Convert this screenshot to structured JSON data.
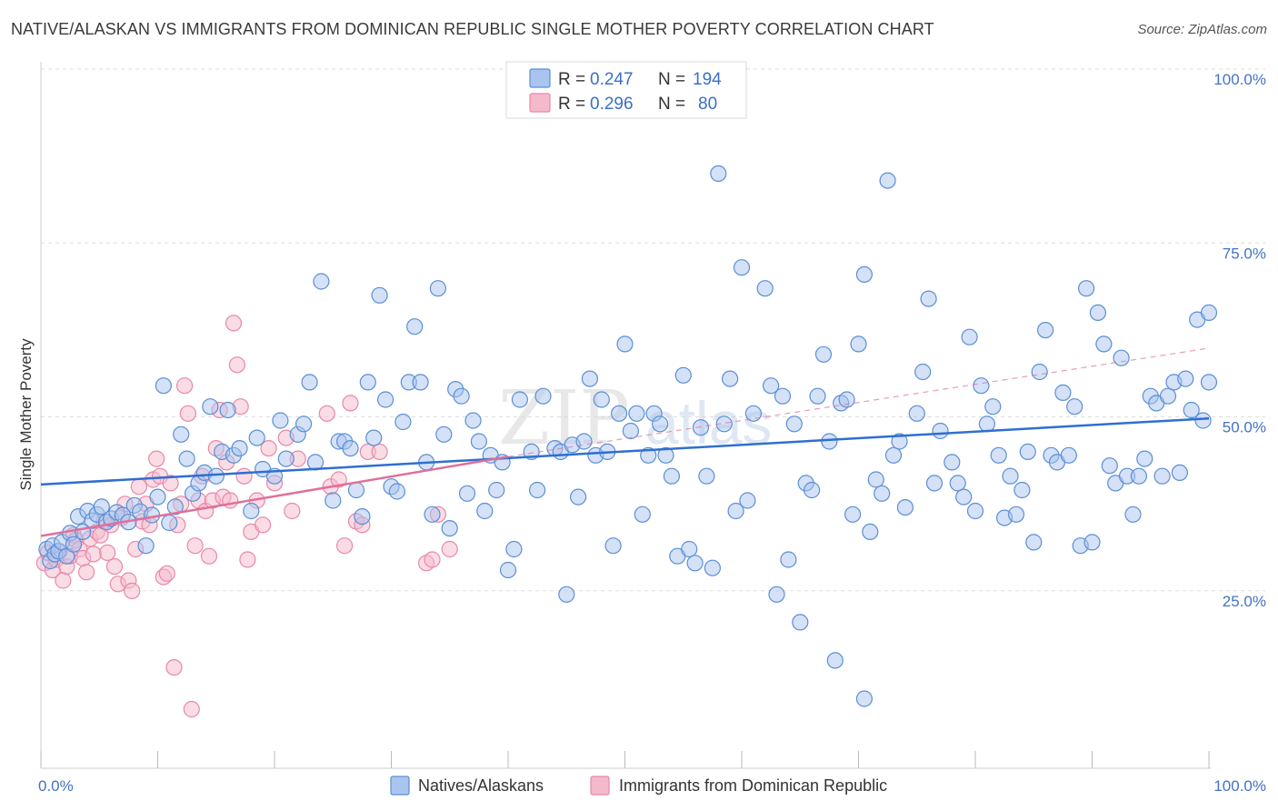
{
  "header": {
    "title": "NATIVE/ALASKAN VS IMMIGRANTS FROM DOMINICAN REPUBLIC SINGLE MOTHER POVERTY CORRELATION CHART",
    "source": "Source: ZipAtlas.com"
  },
  "watermark": {
    "part1": "ZIP",
    "part2": "atlas"
  },
  "legend": {
    "r_label": "R =",
    "n_label": "N =",
    "rows": [
      {
        "r": "0.247",
        "n": "194"
      },
      {
        "r": "0.296",
        "n": "80"
      }
    ]
  },
  "colors": {
    "blue_fill": "#a9c4ee",
    "blue_stroke": "#5b8fd6",
    "blue_line": "#2f6fd0",
    "pink_fill": "#f5b9cc",
    "pink_stroke": "#e888a8",
    "pink_line": "#e0709a",
    "grid": "#dddddd",
    "tick_label": "#4472c4"
  },
  "chart_data": {
    "type": "scatter",
    "title": "NATIVE/ALASKAN VS IMMIGRANTS FROM DOMINICAN REPUBLIC SINGLE MOTHER POVERTY CORRELATION CHART",
    "xlabel": "",
    "ylabel": "Single Mother Poverty",
    "xlim": [
      0,
      100
    ],
    "ylim": [
      0,
      100
    ],
    "x_tick_labels": [
      "0.0%",
      "100.0%"
    ],
    "y_tick_labels": [
      "100.0%",
      "75.0%",
      "50.0%",
      "25.0%"
    ],
    "y_ticks": [
      100,
      75,
      50,
      25
    ],
    "grid": true,
    "legend_position": "top-center",
    "series": [
      {
        "name": "Natives/Alaskans",
        "r": 0.247,
        "n": 194,
        "trend": {
          "x": [
            0,
            100
          ],
          "y": [
            40.8,
            50.3
          ],
          "style": "solid"
        },
        "points": [
          [
            0.5,
            31.5
          ],
          [
            0.8,
            29.8
          ],
          [
            1.0,
            32.0
          ],
          [
            1.2,
            30.8
          ],
          [
            1.5,
            31.2
          ],
          [
            1.8,
            32.5
          ],
          [
            2.2,
            30.5
          ],
          [
            2.5,
            33.8
          ],
          [
            2.8,
            32.2
          ],
          [
            3.2,
            36.2
          ],
          [
            3.6,
            34.0
          ],
          [
            4.0,
            37.0
          ],
          [
            4.4,
            35.6
          ],
          [
            4.8,
            36.5
          ],
          [
            5.2,
            37.6
          ],
          [
            5.6,
            35.4
          ],
          [
            6.0,
            35.9
          ],
          [
            6.5,
            36.8
          ],
          [
            7.0,
            36.4
          ],
          [
            7.5,
            35.4
          ],
          [
            8.0,
            37.8
          ],
          [
            8.5,
            36.9
          ],
          [
            9.0,
            32.0
          ],
          [
            9.5,
            36.4
          ],
          [
            10.0,
            39.0
          ],
          [
            10.5,
            55.0
          ],
          [
            11.0,
            35.3
          ],
          [
            11.5,
            37.6
          ],
          [
            12.0,
            48.0
          ],
          [
            12.5,
            44.5
          ],
          [
            13.0,
            39.5
          ],
          [
            13.5,
            41.0
          ],
          [
            14.0,
            42.5
          ],
          [
            14.5,
            52.0
          ],
          [
            15.0,
            42.0
          ],
          [
            15.5,
            45.5
          ],
          [
            16.0,
            51.5
          ],
          [
            16.5,
            45.0
          ],
          [
            17.0,
            46.0
          ],
          [
            18.0,
            37.0
          ],
          [
            18.5,
            47.5
          ],
          [
            19.0,
            43.0
          ],
          [
            20.0,
            42.0
          ],
          [
            20.5,
            50.0
          ],
          [
            21.0,
            44.5
          ],
          [
            22.0,
            48.0
          ],
          [
            22.5,
            49.5
          ],
          [
            23.0,
            55.5
          ],
          [
            23.5,
            44.0
          ],
          [
            24.0,
            70.0
          ],
          [
            25.0,
            38.5
          ],
          [
            25.5,
            47.0
          ],
          [
            26.0,
            47.0
          ],
          [
            26.5,
            46.0
          ],
          [
            27.0,
            40.0
          ],
          [
            27.5,
            36.2
          ],
          [
            28.0,
            55.5
          ],
          [
            28.5,
            47.5
          ],
          [
            29.0,
            68.0
          ],
          [
            29.5,
            53.0
          ],
          [
            30.0,
            40.5
          ],
          [
            30.5,
            39.8
          ],
          [
            31.0,
            49.8
          ],
          [
            31.5,
            55.5
          ],
          [
            32.0,
            63.5
          ],
          [
            32.5,
            55.5
          ],
          [
            33.0,
            44.0
          ],
          [
            33.5,
            36.5
          ],
          [
            34.0,
            69.0
          ],
          [
            34.5,
            48.0
          ],
          [
            35.0,
            34.5
          ],
          [
            35.5,
            54.5
          ],
          [
            36.0,
            53.5
          ],
          [
            36.5,
            39.5
          ],
          [
            37.0,
            50.0
          ],
          [
            37.5,
            47.0
          ],
          [
            38.0,
            37.0
          ],
          [
            38.5,
            45.0
          ],
          [
            39.0,
            40.0
          ],
          [
            39.5,
            44.0
          ],
          [
            40.0,
            28.5
          ],
          [
            40.5,
            31.5
          ],
          [
            41.0,
            53.0
          ],
          [
            42.0,
            45.5
          ],
          [
            42.5,
            40.0
          ],
          [
            43.0,
            53.5
          ],
          [
            44.0,
            46.0
          ],
          [
            44.5,
            45.5
          ],
          [
            45.0,
            25.0
          ],
          [
            45.5,
            46.5
          ],
          [
            46.0,
            39.0
          ],
          [
            46.5,
            47.0
          ],
          [
            47.0,
            56.0
          ],
          [
            47.5,
            45.0
          ],
          [
            48.0,
            53.0
          ],
          [
            48.5,
            45.5
          ],
          [
            49.0,
            32.0
          ],
          [
            49.5,
            51.0
          ],
          [
            50.0,
            61.0
          ],
          [
            50.5,
            48.5
          ],
          [
            51.0,
            51.0
          ],
          [
            51.5,
            36.5
          ],
          [
            52.0,
            45.0
          ],
          [
            52.5,
            51.0
          ],
          [
            53.0,
            49.5
          ],
          [
            53.5,
            45.0
          ],
          [
            54.0,
            42.0
          ],
          [
            54.5,
            30.5
          ],
          [
            55.0,
            56.5
          ],
          [
            55.5,
            31.5
          ],
          [
            56.0,
            29.5
          ],
          [
            56.5,
            49.0
          ],
          [
            57.0,
            42.0
          ],
          [
            57.5,
            28.8
          ],
          [
            58.0,
            85.5
          ],
          [
            58.5,
            49.5
          ],
          [
            59.0,
            56.0
          ],
          [
            59.5,
            37.0
          ],
          [
            60.0,
            72.0
          ],
          [
            60.5,
            38.5
          ],
          [
            61.0,
            51.0
          ],
          [
            62.0,
            69.0
          ],
          [
            62.5,
            55.0
          ],
          [
            63.0,
            25.0
          ],
          [
            63.5,
            53.5
          ],
          [
            64.0,
            30.0
          ],
          [
            64.5,
            49.5
          ],
          [
            65.0,
            21.0
          ],
          [
            65.5,
            41.0
          ],
          [
            66.0,
            40.0
          ],
          [
            66.5,
            53.5
          ],
          [
            67.0,
            59.5
          ],
          [
            67.5,
            47.0
          ],
          [
            68.0,
            15.5
          ],
          [
            68.5,
            52.5
          ],
          [
            69.0,
            53.0
          ],
          [
            69.5,
            36.5
          ],
          [
            70.0,
            61.0
          ],
          [
            70.5,
            71.0
          ],
          [
            70.5,
            10.0
          ],
          [
            71.0,
            34.0
          ],
          [
            71.5,
            41.5
          ],
          [
            72.0,
            39.5
          ],
          [
            72.5,
            84.5
          ],
          [
            73.0,
            45.0
          ],
          [
            73.5,
            47.0
          ],
          [
            74.0,
            37.5
          ],
          [
            75.0,
            51.0
          ],
          [
            75.5,
            57.0
          ],
          [
            76.0,
            67.5
          ],
          [
            76.5,
            41.0
          ],
          [
            77.0,
            48.5
          ],
          [
            78.0,
            44.0
          ],
          [
            78.5,
            41.0
          ],
          [
            79.0,
            39.0
          ],
          [
            79.5,
            62.0
          ],
          [
            80.0,
            37.0
          ],
          [
            80.5,
            55.0
          ],
          [
            81.0,
            49.5
          ],
          [
            81.5,
            52.0
          ],
          [
            82.0,
            45.0
          ],
          [
            82.5,
            36.0
          ],
          [
            83.0,
            42.0
          ],
          [
            83.5,
            36.5
          ],
          [
            84.0,
            40.0
          ],
          [
            84.5,
            45.5
          ],
          [
            85.0,
            32.5
          ],
          [
            85.5,
            57.0
          ],
          [
            86.0,
            63.0
          ],
          [
            86.5,
            45.0
          ],
          [
            87.0,
            44.0
          ],
          [
            87.5,
            54.0
          ],
          [
            88.0,
            45.0
          ],
          [
            88.5,
            52.0
          ],
          [
            89.0,
            32.0
          ],
          [
            89.5,
            69.0
          ],
          [
            90.0,
            32.5
          ],
          [
            90.5,
            65.5
          ],
          [
            91.0,
            61.0
          ],
          [
            91.5,
            43.5
          ],
          [
            92.0,
            41.0
          ],
          [
            92.5,
            59.0
          ],
          [
            93.0,
            42.0
          ],
          [
            93.5,
            36.5
          ],
          [
            94.0,
            42.0
          ],
          [
            94.5,
            44.5
          ],
          [
            95.0,
            53.5
          ],
          [
            95.5,
            52.5
          ],
          [
            96.0,
            42.0
          ],
          [
            96.5,
            53.5
          ],
          [
            97.0,
            55.5
          ],
          [
            97.5,
            42.5
          ],
          [
            98.0,
            56.0
          ],
          [
            98.5,
            51.5
          ],
          [
            99.0,
            64.5
          ],
          [
            99.5,
            50.0
          ],
          [
            100.0,
            55.5
          ],
          [
            100.0,
            65.5
          ]
        ]
      },
      {
        "name": "Immigrants from Dominican Republic",
        "r": 0.296,
        "n": 80,
        "trend": {
          "x": [
            0,
            40
          ],
          "y": [
            33.4,
            44.8
          ],
          "style": "solid",
          "extension": {
            "x": [
              40,
              100
            ],
            "y": [
              44.8,
              60.4
            ],
            "style": "dashed"
          }
        },
        "points": [
          [
            0.3,
            29.5
          ],
          [
            0.6,
            31.0
          ],
          [
            1.0,
            28.5
          ],
          [
            1.3,
            30.0
          ],
          [
            1.6,
            31.2
          ],
          [
            1.9,
            27.0
          ],
          [
            2.2,
            29.0
          ],
          [
            2.5,
            30.5
          ],
          [
            2.8,
            33.5
          ],
          [
            3.0,
            32.8
          ],
          [
            3.3,
            31.5
          ],
          [
            3.6,
            30.2
          ],
          [
            3.9,
            28.2
          ],
          [
            4.2,
            33.0
          ],
          [
            4.5,
            30.8
          ],
          [
            4.8,
            34.0
          ],
          [
            5.1,
            33.5
          ],
          [
            5.4,
            35.5
          ],
          [
            5.7,
            31.0
          ],
          [
            6.0,
            35.0
          ],
          [
            6.3,
            29.0
          ],
          [
            6.6,
            26.5
          ],
          [
            6.9,
            36.0
          ],
          [
            7.2,
            38.0
          ],
          [
            7.5,
            27.0
          ],
          [
            7.8,
            25.5
          ],
          [
            8.1,
            31.5
          ],
          [
            8.4,
            40.5
          ],
          [
            8.7,
            35.5
          ],
          [
            9.0,
            38.0
          ],
          [
            9.3,
            35.0
          ],
          [
            9.6,
            41.5
          ],
          [
            9.9,
            44.5
          ],
          [
            10.2,
            42.0
          ],
          [
            10.5,
            27.5
          ],
          [
            10.8,
            28.0
          ],
          [
            11.1,
            41.0
          ],
          [
            11.4,
            14.5
          ],
          [
            11.7,
            35.0
          ],
          [
            12.0,
            38.0
          ],
          [
            12.3,
            55.0
          ],
          [
            12.6,
            51.0
          ],
          [
            12.9,
            8.5
          ],
          [
            13.2,
            32.0
          ],
          [
            13.5,
            38.5
          ],
          [
            13.8,
            42.0
          ],
          [
            14.1,
            37.0
          ],
          [
            14.4,
            30.5
          ],
          [
            14.7,
            38.5
          ],
          [
            15.0,
            46.0
          ],
          [
            15.3,
            51.5
          ],
          [
            15.6,
            39.0
          ],
          [
            15.9,
            44.0
          ],
          [
            16.2,
            38.5
          ],
          [
            16.5,
            64.0
          ],
          [
            16.8,
            58.0
          ],
          [
            17.1,
            52.0
          ],
          [
            17.4,
            42.0
          ],
          [
            17.7,
            30.0
          ],
          [
            18.0,
            34.0
          ],
          [
            18.5,
            38.5
          ],
          [
            19.0,
            35.0
          ],
          [
            19.5,
            46.0
          ],
          [
            20.0,
            41.0
          ],
          [
            21.0,
            47.5
          ],
          [
            21.5,
            37.0
          ],
          [
            22.0,
            44.5
          ],
          [
            24.5,
            51.0
          ],
          [
            24.8,
            40.5
          ],
          [
            25.5,
            41.5
          ],
          [
            26.0,
            32.0
          ],
          [
            26.5,
            52.5
          ],
          [
            27.0,
            35.5
          ],
          [
            27.5,
            35.0
          ],
          [
            28.0,
            45.5
          ],
          [
            29.0,
            45.5
          ],
          [
            33.0,
            29.5
          ],
          [
            33.5,
            30.0
          ],
          [
            34.0,
            36.5
          ],
          [
            35.0,
            31.5
          ]
        ]
      }
    ],
    "bottom_legend": [
      "Natives/Alaskans",
      "Immigrants from Dominican Republic"
    ]
  }
}
